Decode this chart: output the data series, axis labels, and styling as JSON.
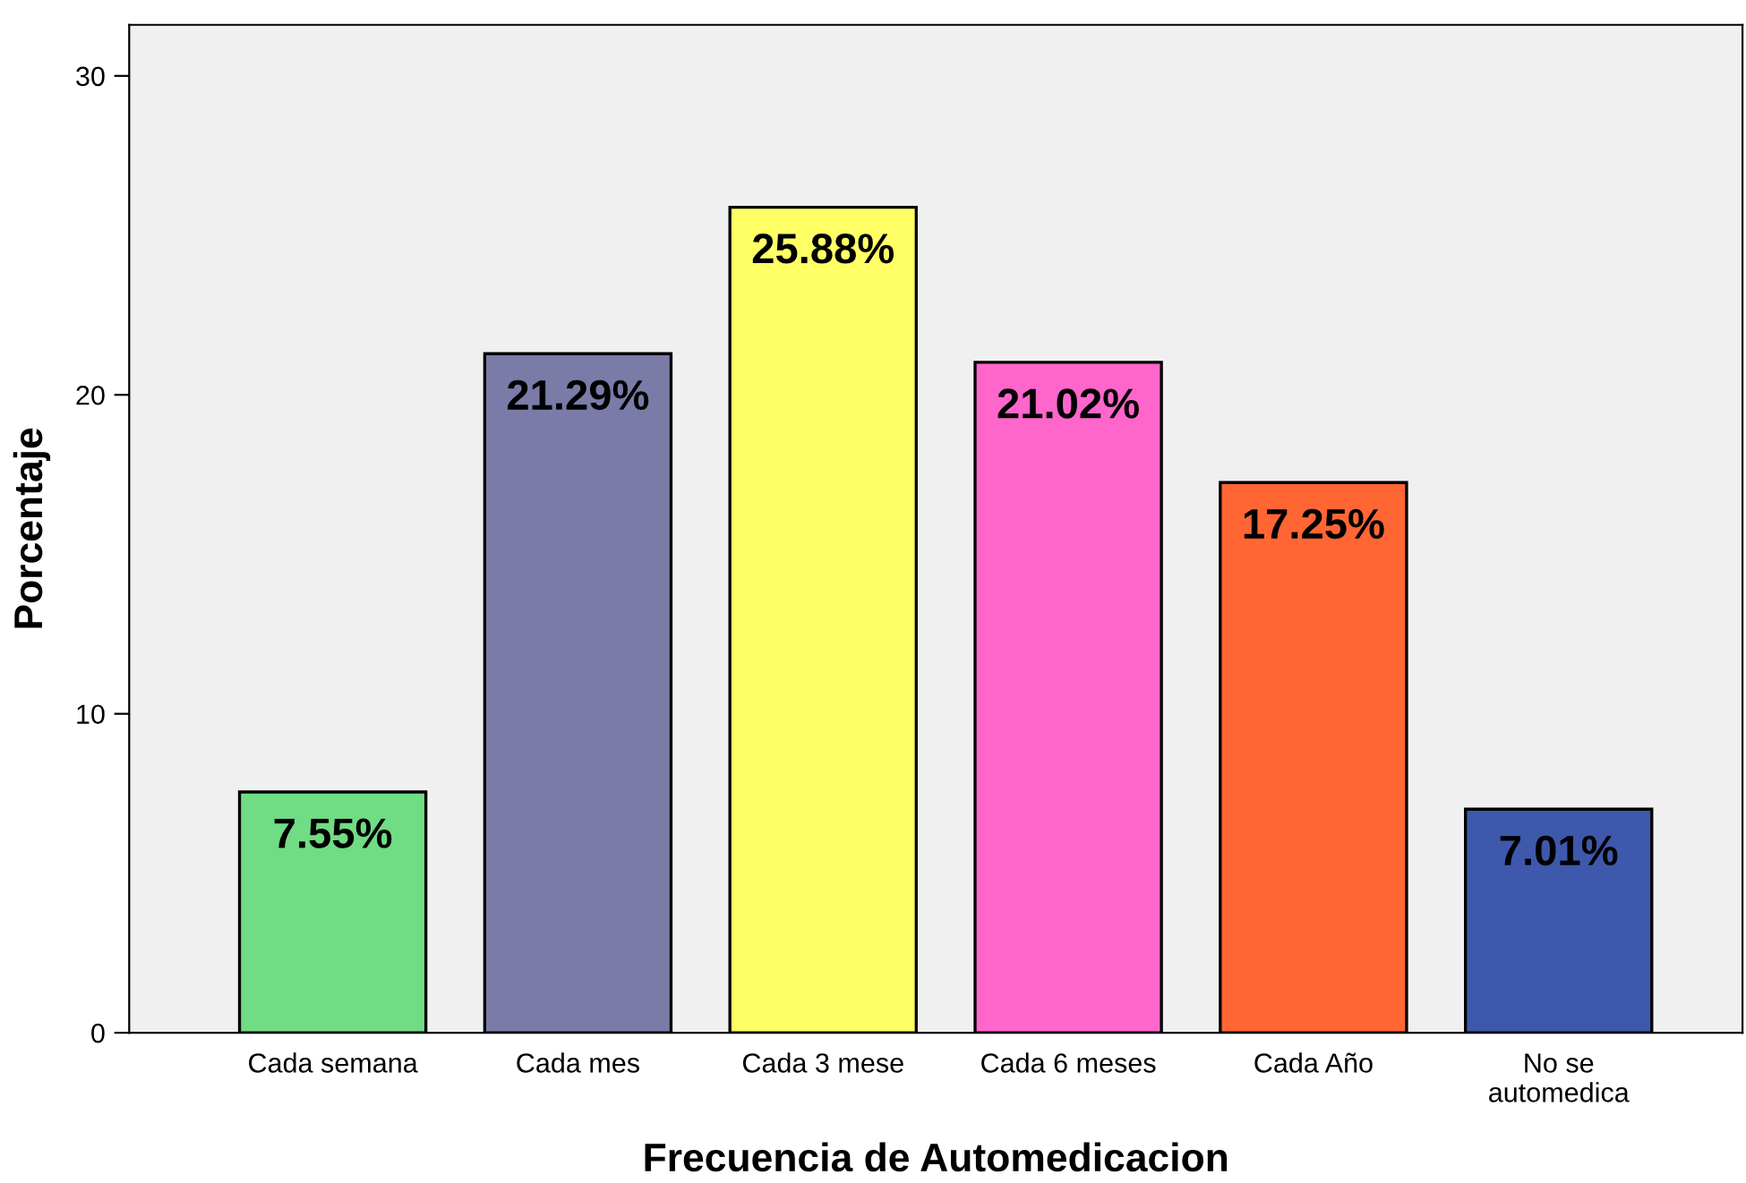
{
  "chart_data": {
    "type": "bar",
    "xlabel": "Frecuencia de Automedicacion",
    "ylabel": "Porcentaje",
    "categories": [
      "Cada semana",
      "Cada mes",
      "Cada 3 mese",
      "Cada 6 meses",
      "Cada Año",
      "No se\nautomedica"
    ],
    "values": [
      7.55,
      21.29,
      25.88,
      21.02,
      17.25,
      7.01
    ],
    "value_labels": [
      "7.55%",
      "21.29%",
      "25.88%",
      "21.02%",
      "17.25%",
      "7.01%"
    ],
    "colors": [
      "#70dc84",
      "#7b7ba8",
      "#ffff66",
      "#ff66cc",
      "#ff6633",
      "#3e58ac"
    ],
    "ylim": [
      0,
      31.6
    ],
    "yticks": [
      0,
      10,
      20,
      30
    ],
    "grid": false,
    "legend": false
  }
}
